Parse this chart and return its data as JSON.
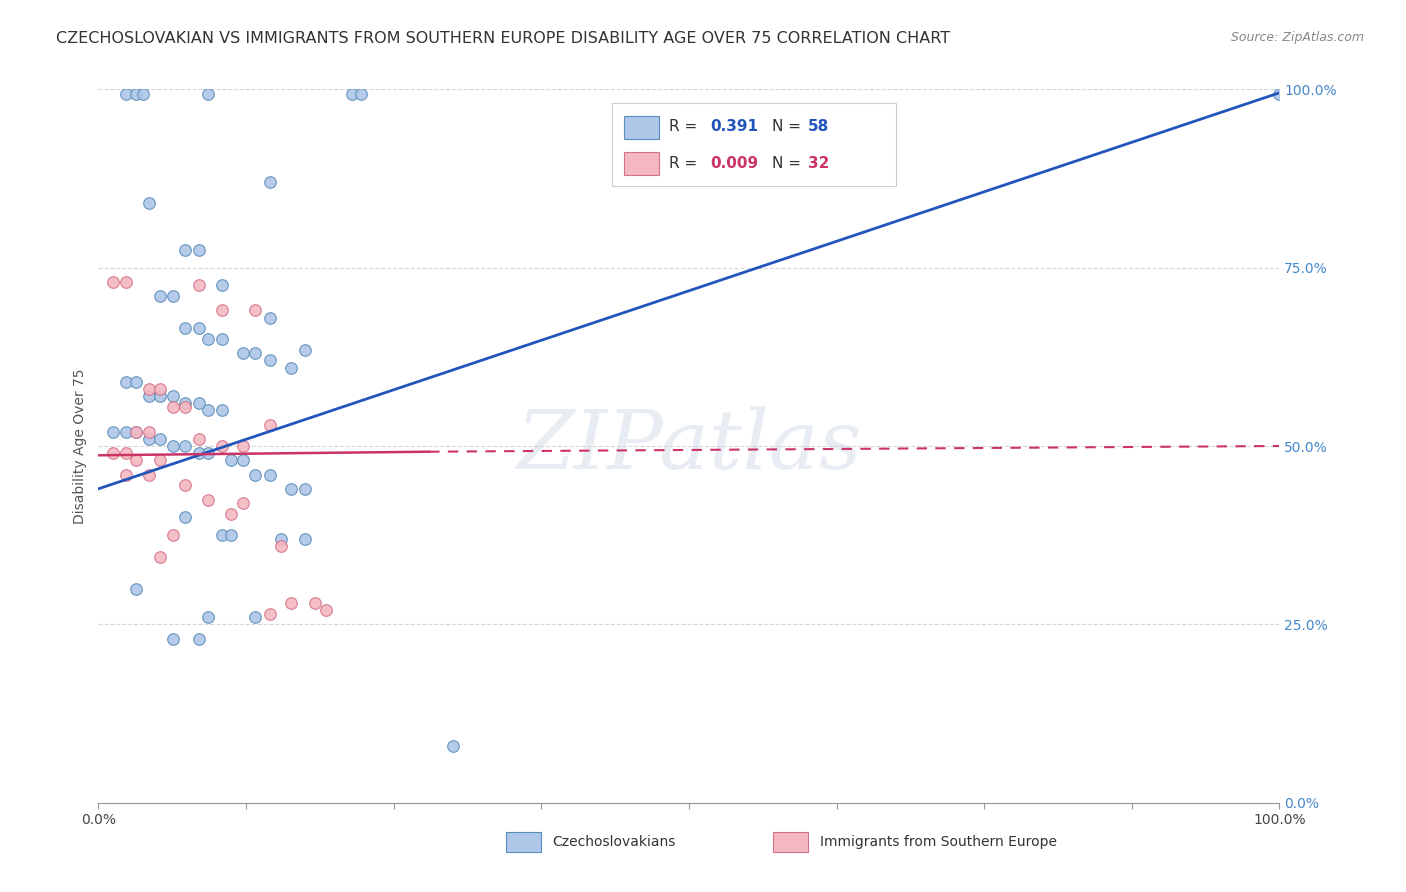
{
  "title": "CZECHOSLOVAKIAN VS IMMIGRANTS FROM SOUTHERN EUROPE DISABILITY AGE OVER 75 CORRELATION CHART",
  "source": "Source: ZipAtlas.com",
  "ylabel": "Disability Age Over 75",
  "xlim": [
    0,
    1
  ],
  "ylim": [
    0,
    1
  ],
  "ytick_positions": [
    0.0,
    0.25,
    0.5,
    0.75,
    1.0
  ],
  "ytick_labels": [
    "0.0%",
    "25.0%",
    "50.0%",
    "75.0%",
    "100.0%"
  ],
  "xtick_positions": [
    0.0,
    0.125,
    0.25,
    0.375,
    0.5,
    0.625,
    0.75,
    0.875,
    1.0
  ],
  "xtick_labels": [
    "0.0%",
    "",
    "",
    "",
    "",
    "",
    "",
    "",
    "100.0%"
  ],
  "watermark": "ZIPatlas",
  "blue_line": {
    "x0": 0.0,
    "y0": 0.44,
    "x1": 1.0,
    "y1": 0.995
  },
  "pink_line_solid": {
    "x0": 0.0,
    "y0": 0.487,
    "x1": 0.28,
    "y1": 0.492
  },
  "pink_line_dashed": {
    "x0": 0.28,
    "y0": 0.492,
    "x1": 1.0,
    "y1": 0.5
  },
  "blue_scatter": [
    [
      0.023,
      0.993
    ],
    [
      0.032,
      0.993
    ],
    [
      0.038,
      0.993
    ],
    [
      0.093,
      0.993
    ],
    [
      0.215,
      0.993
    ],
    [
      0.222,
      0.993
    ],
    [
      0.145,
      0.87
    ],
    [
      0.043,
      0.84
    ],
    [
      0.073,
      0.775
    ],
    [
      0.085,
      0.775
    ],
    [
      0.105,
      0.725
    ],
    [
      0.145,
      0.68
    ],
    [
      0.175,
      0.635
    ],
    [
      0.052,
      0.71
    ],
    [
      0.063,
      0.71
    ],
    [
      0.073,
      0.665
    ],
    [
      0.085,
      0.665
    ],
    [
      0.093,
      0.65
    ],
    [
      0.105,
      0.65
    ],
    [
      0.122,
      0.63
    ],
    [
      0.133,
      0.63
    ],
    [
      0.145,
      0.62
    ],
    [
      0.163,
      0.61
    ],
    [
      0.023,
      0.59
    ],
    [
      0.032,
      0.59
    ],
    [
      0.043,
      0.57
    ],
    [
      0.052,
      0.57
    ],
    [
      0.063,
      0.57
    ],
    [
      0.073,
      0.56
    ],
    [
      0.085,
      0.56
    ],
    [
      0.093,
      0.55
    ],
    [
      0.105,
      0.55
    ],
    [
      0.012,
      0.52
    ],
    [
      0.023,
      0.52
    ],
    [
      0.032,
      0.52
    ],
    [
      0.043,
      0.51
    ],
    [
      0.052,
      0.51
    ],
    [
      0.063,
      0.5
    ],
    [
      0.073,
      0.5
    ],
    [
      0.085,
      0.49
    ],
    [
      0.093,
      0.49
    ],
    [
      0.112,
      0.48
    ],
    [
      0.122,
      0.48
    ],
    [
      0.133,
      0.46
    ],
    [
      0.145,
      0.46
    ],
    [
      0.163,
      0.44
    ],
    [
      0.175,
      0.44
    ],
    [
      0.073,
      0.4
    ],
    [
      0.105,
      0.375
    ],
    [
      0.112,
      0.375
    ],
    [
      0.155,
      0.37
    ],
    [
      0.175,
      0.37
    ],
    [
      0.032,
      0.3
    ],
    [
      0.093,
      0.26
    ],
    [
      0.133,
      0.26
    ],
    [
      0.063,
      0.23
    ],
    [
      0.085,
      0.23
    ],
    [
      0.3,
      0.08
    ],
    [
      1.0,
      0.993
    ]
  ],
  "pink_scatter": [
    [
      0.012,
      0.73
    ],
    [
      0.023,
      0.73
    ],
    [
      0.085,
      0.725
    ],
    [
      0.105,
      0.69
    ],
    [
      0.133,
      0.69
    ],
    [
      0.043,
      0.58
    ],
    [
      0.052,
      0.58
    ],
    [
      0.063,
      0.555
    ],
    [
      0.073,
      0.555
    ],
    [
      0.032,
      0.52
    ],
    [
      0.043,
      0.52
    ],
    [
      0.085,
      0.51
    ],
    [
      0.105,
      0.5
    ],
    [
      0.122,
      0.5
    ],
    [
      0.012,
      0.49
    ],
    [
      0.023,
      0.49
    ],
    [
      0.032,
      0.48
    ],
    [
      0.052,
      0.48
    ],
    [
      0.145,
      0.53
    ],
    [
      0.023,
      0.46
    ],
    [
      0.043,
      0.46
    ],
    [
      0.073,
      0.445
    ],
    [
      0.093,
      0.425
    ],
    [
      0.112,
      0.405
    ],
    [
      0.063,
      0.375
    ],
    [
      0.163,
      0.28
    ],
    [
      0.183,
      0.28
    ],
    [
      0.193,
      0.27
    ],
    [
      0.145,
      0.265
    ],
    [
      0.122,
      0.42
    ],
    [
      0.155,
      0.36
    ],
    [
      0.052,
      0.345
    ]
  ],
  "scatter_marker_size": 70,
  "blue_scatter_color": "#aec6e8",
  "blue_scatter_edge": "#5b8db8",
  "pink_scatter_color": "#f4b8c1",
  "pink_scatter_edge": "#d4708a",
  "blue_line_color": "#2255bb",
  "pink_line_color": "#cc3366",
  "grid_color": "#cccccc",
  "title_fontsize": 11.5,
  "source_fontsize": 9,
  "background_color": "#ffffff"
}
